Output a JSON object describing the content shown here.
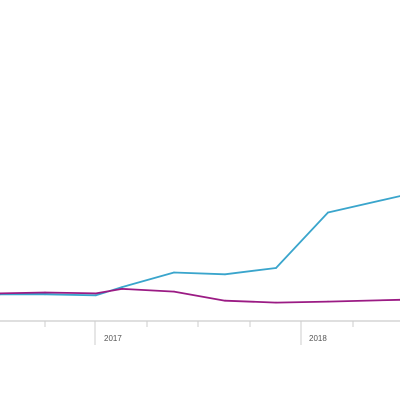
{
  "chart_data": {
    "type": "line",
    "x_tick_labels": [
      "2017",
      "2018"
    ],
    "x": [
      0,
      1,
      2,
      3,
      4,
      5,
      6,
      7,
      8
    ],
    "series": [
      {
        "color": "#3aa5cc",
        "values": [
          0.4,
          0.4,
          0.3,
          1.2,
          2.8,
          2.6,
          3.3,
          9.4,
          11.2
        ]
      },
      {
        "color": "#9b1b84",
        "values": [
          0.5,
          0.6,
          0.5,
          1.0,
          0.7,
          -0.3,
          -0.5,
          -0.4,
          -0.2
        ]
      }
    ],
    "grid": false,
    "legend": "none"
  }
}
